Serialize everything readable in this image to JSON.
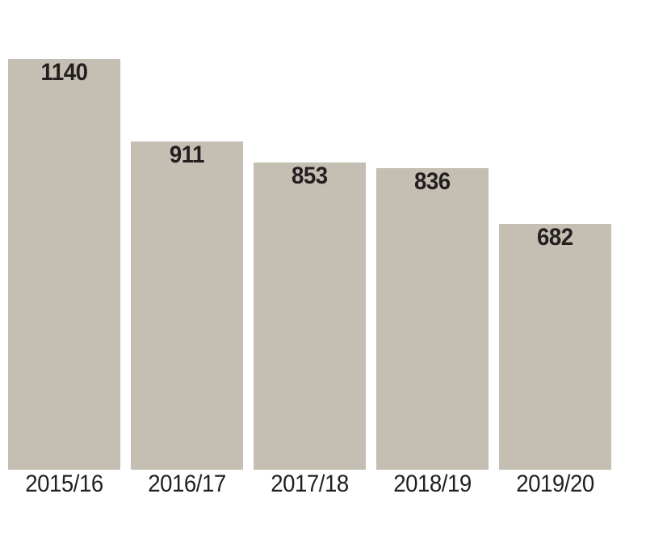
{
  "chart_data": {
    "type": "bar",
    "categories": [
      "2015/16",
      "2016/17",
      "2017/18",
      "2018/19",
      "2019/20"
    ],
    "values": [
      1140,
      911,
      853,
      836,
      682
    ],
    "title": "",
    "xlabel": "",
    "ylabel": "",
    "ylim": [
      0,
      1140
    ],
    "grid": false,
    "legend": null,
    "axis_lines": false,
    "value_labels_shown": true,
    "value_label_position": "inside-top",
    "colors": {
      "bar_fill": "#c4bfb2",
      "value_label": "#231f20",
      "tick_label": "#231f20",
      "background": "#ffffff"
    }
  }
}
